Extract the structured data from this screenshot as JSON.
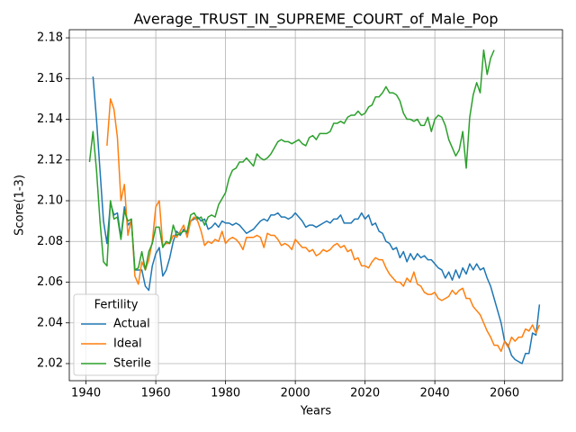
{
  "chart_data": {
    "type": "line",
    "title": "Average_TRUST_IN_SUPREME_COURT_of_Male_Pop",
    "x_label": "Years",
    "y_label": "Score(1-3)",
    "legend_title": "Fertility",
    "legend": "lower left",
    "grid": true,
    "xlim": [
      1935.2,
      2076.6
    ],
    "ylim": [
      2.0116,
      2.184
    ],
    "xticks": [
      1940,
      1960,
      1980,
      2000,
      2020,
      2040,
      2060
    ],
    "yticks": [
      2.02,
      2.04,
      2.06,
      2.08,
      {
        "value": 2.1,
        "label": "2.10"
      },
      2.12,
      2.14,
      2.16,
      2.18
    ],
    "x": [
      1941,
      1942,
      1943,
      1944,
      1945,
      1946,
      1947,
      1948,
      1949,
      1950,
      1951,
      1952,
      1953,
      1954,
      1955,
      1956,
      1957,
      1958,
      1959,
      1960,
      1961,
      1962,
      1963,
      1964,
      1965,
      1966,
      1967,
      1968,
      1969,
      1970,
      1971,
      1972,
      1973,
      1974,
      1975,
      1976,
      1977,
      1978,
      1979,
      1980,
      1981,
      1982,
      1983,
      1984,
      1985,
      1986,
      1987,
      1988,
      1989,
      1990,
      1991,
      1992,
      1993,
      1994,
      1995,
      1996,
      1997,
      1998,
      1999,
      2000,
      2001,
      2002,
      2003,
      2004,
      2005,
      2006,
      2007,
      2008,
      2009,
      2010,
      2011,
      2012,
      2013,
      2014,
      2015,
      2016,
      2017,
      2018,
      2019,
      2020,
      2021,
      2022,
      2023,
      2024,
      2025,
      2026,
      2027,
      2028,
      2029,
      2030,
      2031,
      2032,
      2033,
      2034,
      2035,
      2036,
      2037,
      2038,
      2039,
      2040,
      2041,
      2042,
      2043,
      2044,
      2045,
      2046,
      2047,
      2048,
      2049,
      2050,
      2051,
      2052,
      2053,
      2054,
      2055,
      2056,
      2057,
      2058,
      2059,
      2060,
      2061,
      2062,
      2063,
      2064,
      2065,
      2066,
      2067,
      2068,
      2069,
      2070
    ],
    "series": [
      {
        "name": "Actual",
        "color": "#1f77b4",
        "values": [
          null,
          2.161,
          2.14,
          2.115,
          2.09,
          2.079,
          2.099,
          2.093,
          2.094,
          2.082,
          2.097,
          2.088,
          2.09,
          2.066,
          2.066,
          2.066,
          2.058,
          2.056,
          2.068,
          2.074,
          2.077,
          2.063,
          2.066,
          2.072,
          2.08,
          2.085,
          2.083,
          2.086,
          2.084,
          2.09,
          2.091,
          2.092,
          2.09,
          2.091,
          2.086,
          2.087,
          2.089,
          2.087,
          2.09,
          2.089,
          2.089,
          2.088,
          2.089,
          2.088,
          2.086,
          2.084,
          2.085,
          2.086,
          2.088,
          2.09,
          2.091,
          2.09,
          2.093,
          2.093,
          2.094,
          2.092,
          2.092,
          2.091,
          2.092,
          2.094,
          2.092,
          2.09,
          2.087,
          2.088,
          2.088,
          2.087,
          2.088,
          2.089,
          2.09,
          2.089,
          2.091,
          2.091,
          2.093,
          2.089,
          2.089,
          2.089,
          2.091,
          2.091,
          2.094,
          2.091,
          2.093,
          2.088,
          2.089,
          2.085,
          2.084,
          2.08,
          2.079,
          2.076,
          2.077,
          2.072,
          2.075,
          2.07,
          2.074,
          2.071,
          2.074,
          2.072,
          2.073,
          2.071,
          2.071,
          2.069,
          2.067,
          2.066,
          2.062,
          2.065,
          2.061,
          2.066,
          2.062,
          2.067,
          2.064,
          2.069,
          2.066,
          2.069,
          2.066,
          2.067,
          2.062,
          2.058,
          2.052,
          2.046,
          2.04,
          2.031,
          2.029,
          2.024,
          2.022,
          2.021,
          2.02,
          2.025,
          2.025,
          2.035,
          2.034,
          2.049
        ]
      },
      {
        "name": "Ideal",
        "color": "#ff7f0e",
        "values": [
          null,
          null,
          null,
          null,
          null,
          2.127,
          2.15,
          2.145,
          2.131,
          2.1,
          2.108,
          2.083,
          2.091,
          2.063,
          2.059,
          2.07,
          2.066,
          2.071,
          2.08,
          2.097,
          2.1,
          2.078,
          2.079,
          2.079,
          2.083,
          2.082,
          2.085,
          2.088,
          2.082,
          2.09,
          2.092,
          2.09,
          2.085,
          2.078,
          2.08,
          2.079,
          2.081,
          2.08,
          2.085,
          2.079,
          2.081,
          2.082,
          2.081,
          2.079,
          2.076,
          2.082,
          2.082,
          2.082,
          2.083,
          2.082,
          2.077,
          2.084,
          2.083,
          2.083,
          2.081,
          2.078,
          2.079,
          2.078,
          2.076,
          2.081,
          2.079,
          2.077,
          2.077,
          2.075,
          2.076,
          2.073,
          2.074,
          2.076,
          2.075,
          2.076,
          2.078,
          2.079,
          2.077,
          2.078,
          2.075,
          2.076,
          2.071,
          2.072,
          2.068,
          2.068,
          2.067,
          2.07,
          2.072,
          2.071,
          2.071,
          2.067,
          2.064,
          2.062,
          2.06,
          2.06,
          2.058,
          2.062,
          2.06,
          2.065,
          2.059,
          2.058,
          2.055,
          2.054,
          2.054,
          2.055,
          2.052,
          2.051,
          2.052,
          2.053,
          2.056,
          2.054,
          2.056,
          2.057,
          2.052,
          2.052,
          2.048,
          2.046,
          2.044,
          2.04,
          2.036,
          2.033,
          2.029,
          2.029,
          2.026,
          2.031,
          2.028,
          2.033,
          2.031,
          2.033,
          2.033,
          2.037,
          2.036,
          2.039,
          2.035,
          2.039
        ]
      },
      {
        "name": "Sterile",
        "color": "#2ca02c",
        "values": [
          2.119,
          2.134,
          2.115,
          2.09,
          2.07,
          2.068,
          2.1,
          2.091,
          2.092,
          2.081,
          2.095,
          2.09,
          2.091,
          2.066,
          2.067,
          2.075,
          2.066,
          2.075,
          2.079,
          2.087,
          2.087,
          2.077,
          2.08,
          2.079,
          2.088,
          2.083,
          2.084,
          2.085,
          2.085,
          2.093,
          2.094,
          2.091,
          2.092,
          2.088,
          2.092,
          2.093,
          2.092,
          2.098,
          2.101,
          2.104,
          2.111,
          2.115,
          2.116,
          2.119,
          2.119,
          2.121,
          2.119,
          2.117,
          2.123,
          2.121,
          2.12,
          2.121,
          2.123,
          2.126,
          2.129,
          2.13,
          2.129,
          2.129,
          2.128,
          2.129,
          2.13,
          2.128,
          2.127,
          2.131,
          2.132,
          2.13,
          2.133,
          2.133,
          2.133,
          2.134,
          2.138,
          2.138,
          2.139,
          2.138,
          2.141,
          2.142,
          2.142,
          2.144,
          2.142,
          2.143,
          2.146,
          2.147,
          2.151,
          2.151,
          2.153,
          2.156,
          2.153,
          2.153,
          2.152,
          2.149,
          2.143,
          2.14,
          2.14,
          2.139,
          2.14,
          2.137,
          2.137,
          2.141,
          2.134,
          2.14,
          2.142,
          2.141,
          2.137,
          2.13,
          2.126,
          2.122,
          2.125,
          2.134,
          2.116,
          2.141,
          2.152,
          2.158,
          2.153,
          2.174,
          2.162,
          2.17,
          2.174,
          null,
          null,
          null,
          null,
          null,
          null,
          null,
          null,
          null,
          null,
          null,
          null,
          null
        ]
      }
    ]
  }
}
